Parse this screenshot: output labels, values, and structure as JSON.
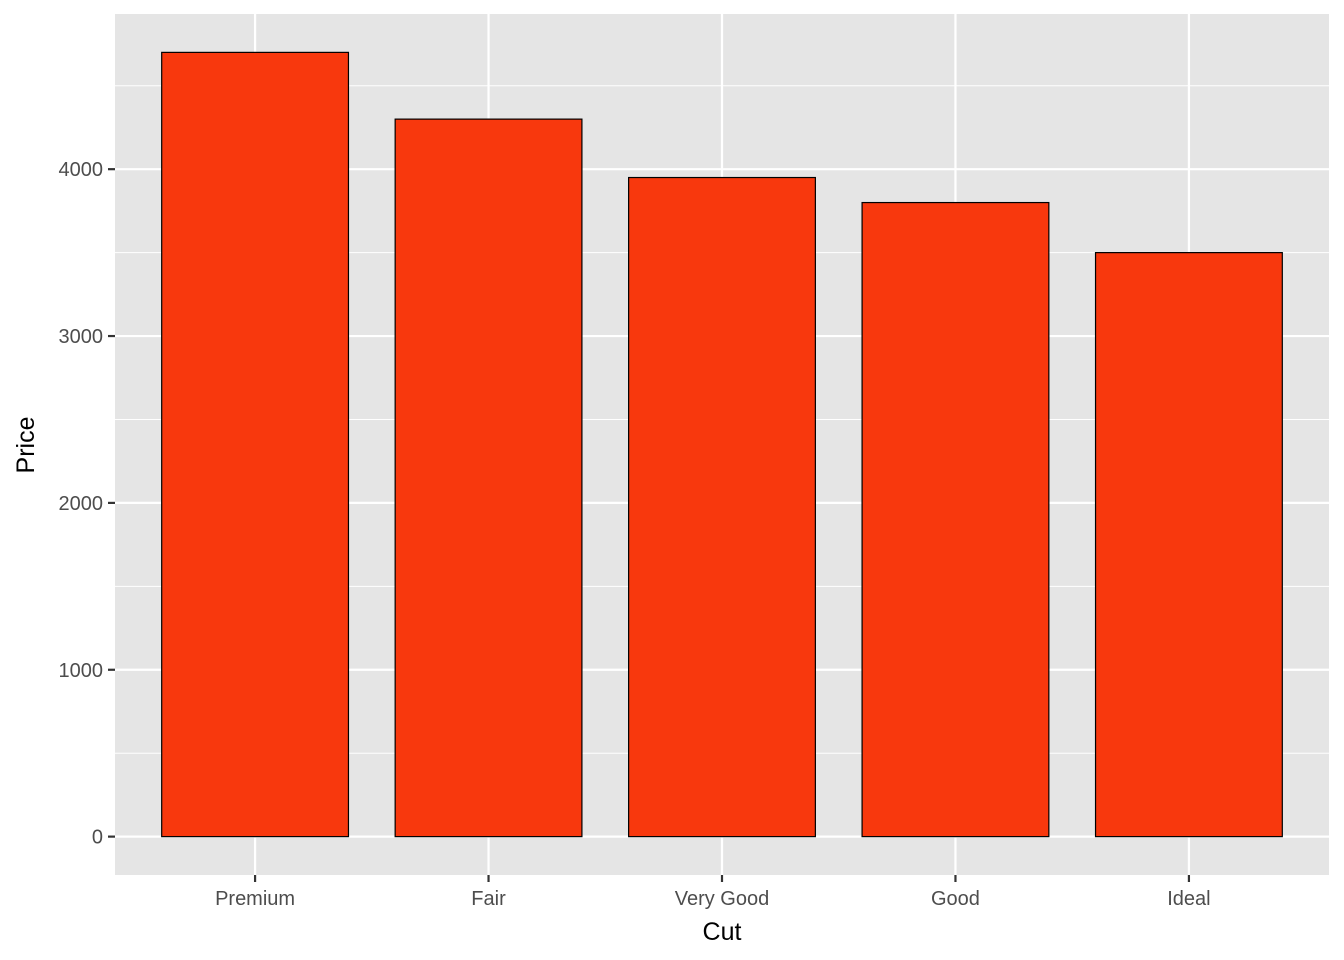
{
  "chart_data": {
    "type": "bar",
    "categories": [
      "Premium",
      "Fair",
      "Very Good",
      "Good",
      "Ideal"
    ],
    "values": [
      4700,
      4300,
      3950,
      3800,
      3500
    ],
    "xlabel": "Cut",
    "ylabel": "Price",
    "ylim": [
      -230,
      4930
    ],
    "yticks": [
      0,
      1000,
      2000,
      3000,
      4000
    ],
    "ytick_labels": [
      "0",
      "1000",
      "2000",
      "3000",
      "4000"
    ],
    "grid": true,
    "legend": "none",
    "colors": {
      "bar_fill": "#F8380D",
      "bar_border": "#000000",
      "panel_background": "#E5E5E5",
      "gridline": "#FFFFFF"
    }
  }
}
